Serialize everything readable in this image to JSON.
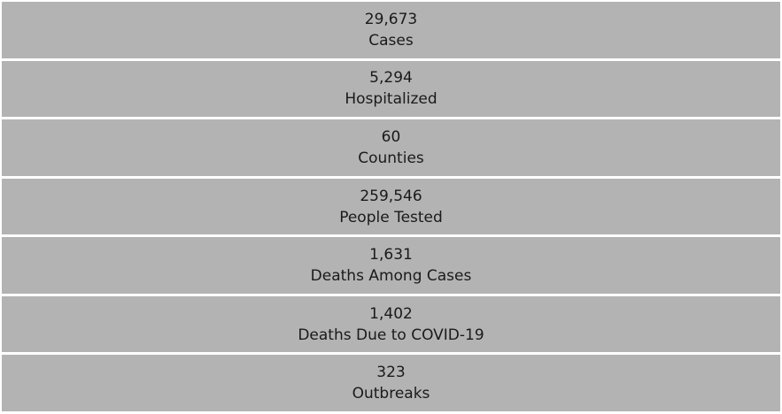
{
  "tiles": [
    {
      "value": "29,673",
      "label": "Cases"
    },
    {
      "value": "5,294",
      "label": "Hospitalized"
    },
    {
      "value": "60",
      "label": "Counties"
    },
    {
      "value": "259,546",
      "label": "People Tested"
    },
    {
      "value": "1,631",
      "label": "Deaths Among Cases"
    },
    {
      "value": "1,402",
      "label": "Deaths Due to COVID-19"
    },
    {
      "value": "323",
      "label": "Outbreaks"
    }
  ]
}
